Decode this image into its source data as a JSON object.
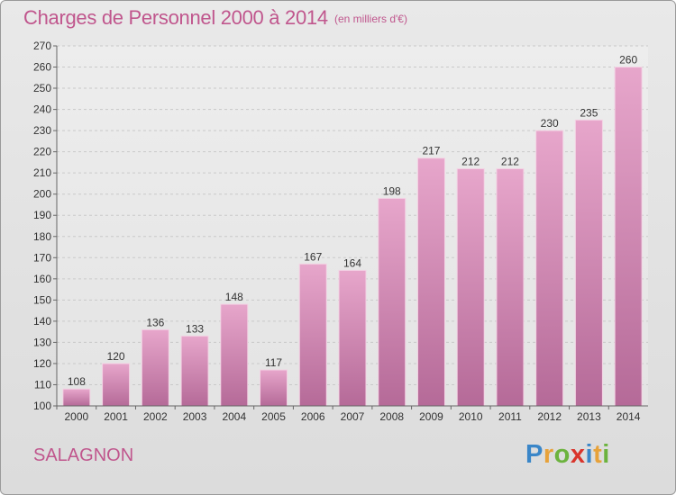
{
  "chart_data": {
    "type": "bar",
    "title": "Charges de Personnel 2000 à 2014",
    "unit_note": "(en milliers d'€)",
    "categories": [
      "2000",
      "2001",
      "2002",
      "2003",
      "2004",
      "2005",
      "2006",
      "2007",
      "2008",
      "2009",
      "2010",
      "2011",
      "2012",
      "2013",
      "2014"
    ],
    "values": [
      108,
      120,
      136,
      133,
      148,
      117,
      167,
      164,
      198,
      217,
      212,
      212,
      230,
      235,
      260
    ],
    "ylim": [
      100,
      270
    ],
    "ytick_step": 10,
    "grid": true,
    "bar_color": "#d98fb8",
    "value_labels": true
  },
  "location": "SALAGNON",
  "logo": {
    "letters": [
      "P",
      "r",
      "o",
      "x",
      "i",
      "t",
      "i"
    ]
  }
}
